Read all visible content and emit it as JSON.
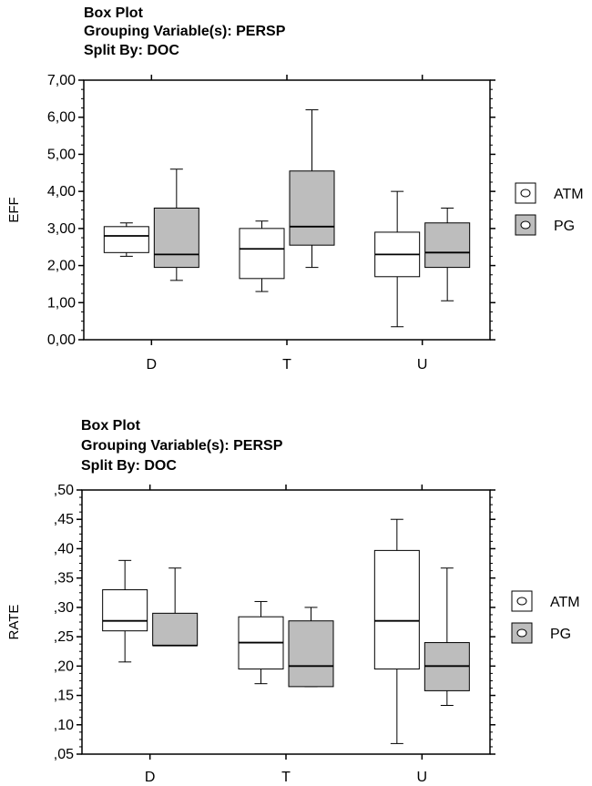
{
  "chart_data": [
    {
      "type": "box",
      "title_lines": [
        "Box Plot",
        "Grouping Variable(s): PERSP",
        "Split By: DOC"
      ],
      "ylabel": "EFF",
      "ylim": [
        0,
        7
      ],
      "yticks": [
        0,
        1,
        2,
        3,
        4,
        5,
        6,
        7
      ],
      "ytick_labels": [
        "0,00",
        "1,00",
        "2,00",
        "3,00",
        "4,00",
        "5,00",
        "6,00",
        "7,00"
      ],
      "categories": [
        "D",
        "T",
        "U"
      ],
      "series": [
        {
          "name": "ATM",
          "color": "#ffffff",
          "boxes": [
            {
              "min": 2.25,
              "q1": 2.35,
              "median": 2.8,
              "q3": 3.05,
              "max": 3.15
            },
            {
              "min": 1.3,
              "q1": 1.65,
              "median": 2.45,
              "q3": 3.0,
              "max": 3.2
            },
            {
              "min": 0.35,
              "q1": 1.7,
              "median": 2.3,
              "q3": 2.9,
              "max": 4.0
            }
          ]
        },
        {
          "name": "PG",
          "color": "#bdbdbd",
          "boxes": [
            {
              "min": 1.6,
              "q1": 1.95,
              "median": 2.3,
              "q3": 3.55,
              "max": 4.6
            },
            {
              "min": 1.95,
              "q1": 2.55,
              "median": 3.05,
              "q3": 4.55,
              "max": 6.2
            },
            {
              "min": 1.05,
              "q1": 1.95,
              "median": 2.35,
              "q3": 3.15,
              "max": 3.55
            }
          ]
        }
      ],
      "legend": [
        "ATM",
        "PG"
      ],
      "legend_position": "right"
    },
    {
      "type": "box",
      "title_lines": [
        "Box Plot",
        "Grouping Variable(s): PERSP",
        "Split By: DOC"
      ],
      "ylabel": "RATE",
      "ylim": [
        0.05,
        0.5
      ],
      "yticks": [
        0.05,
        0.1,
        0.15,
        0.2,
        0.25,
        0.3,
        0.35,
        0.4,
        0.45,
        0.5
      ],
      "ytick_labels": [
        ",05",
        ",10",
        ",15",
        ",20",
        ",25",
        ",30",
        ",35",
        ",40",
        ",45",
        ",50"
      ],
      "categories": [
        "D",
        "T",
        "U"
      ],
      "series": [
        {
          "name": "ATM",
          "color": "#ffffff",
          "boxes": [
            {
              "min": 0.207,
              "q1": 0.26,
              "median": 0.277,
              "q3": 0.33,
              "max": 0.38
            },
            {
              "min": 0.17,
              "q1": 0.195,
              "median": 0.24,
              "q3": 0.284,
              "max": 0.31
            },
            {
              "min": 0.068,
              "q1": 0.195,
              "median": 0.277,
              "q3": 0.397,
              "max": 0.45
            }
          ]
        },
        {
          "name": "PG",
          "color": "#bdbdbd",
          "boxes": [
            {
              "min": 0.235,
              "q1": 0.235,
              "median": 0.235,
              "q3": 0.29,
              "max": 0.367
            },
            {
              "min": 0.165,
              "q1": 0.165,
              "median": 0.2,
              "q3": 0.277,
              "max": 0.3
            },
            {
              "min": 0.133,
              "q1": 0.158,
              "median": 0.2,
              "q3": 0.24,
              "max": 0.367
            }
          ]
        }
      ],
      "legend": [
        "ATM",
        "PG"
      ],
      "legend_position": "right"
    }
  ]
}
